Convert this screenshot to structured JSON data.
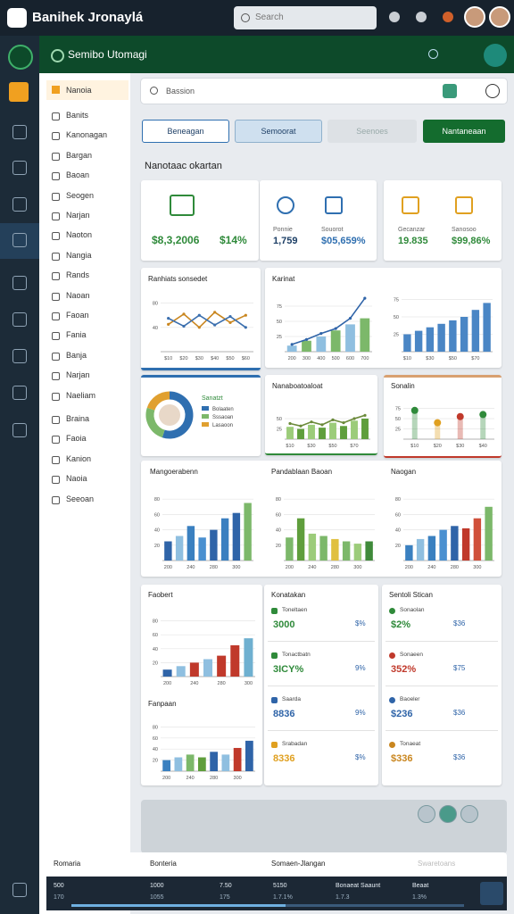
{
  "topbar": {
    "title": "Banihek Jronaylá",
    "search": "Search"
  },
  "header": {
    "title": "Semibo Utomagi"
  },
  "nav": {
    "title": "Nanoia",
    "items": [
      "Banits",
      "Kanonagan",
      "Bargan",
      "Baoan",
      "Seogen",
      "Narjan",
      "Naoton",
      "Nangia",
      "Rands",
      "Naoan",
      "Faoan",
      "Fania",
      "Banja",
      "Narjan",
      "Naeliam",
      "Braina",
      "Faoia",
      "Kanion",
      "Naoia",
      "Seeoan"
    ]
  },
  "main_search": {
    "placeholder": "Bassion"
  },
  "tabs": [
    "Beneagan",
    "Semoorat",
    "Seenoes",
    "Nantaneaan"
  ],
  "section_title": "Nanotaac okartan",
  "kpis": [
    {
      "value": "$8,3,2006",
      "change": "$14%"
    },
    {
      "label": "Ponnie",
      "value": "1,759"
    },
    {
      "label": "Souorot",
      "value": "$05,659%"
    },
    {
      "label": "Gecanzar",
      "value": "19.835"
    },
    {
      "label": "Sanosoo",
      "value": "$99,86%"
    }
  ],
  "charts": [
    {
      "title": "Ranhiats sonsedet",
      "type": "line",
      "ylim": [
        0,
        100
      ],
      "yticks": [
        40,
        80
      ],
      "categories": [
        "$10",
        "$20",
        "$30",
        "$40",
        "$50",
        "$60"
      ],
      "lines": [
        {
          "color": "#c9861f",
          "values": [
            45,
            62,
            40,
            65,
            48,
            60
          ]
        },
        {
          "color": "#3b6fae",
          "values": [
            55,
            42,
            60,
            44,
            58,
            40
          ]
        }
      ]
    },
    {
      "title": "Karinat",
      "type": "bar",
      "ylim": [
        0,
        100
      ],
      "yticks": [
        25,
        50,
        75
      ],
      "categories": [
        "200",
        "300",
        "400",
        "500",
        "600",
        "700"
      ],
      "values": [
        10,
        18,
        25,
        35,
        45,
        55
      ],
      "colors": [
        "#8fbfe0",
        "#7cb86a"
      ],
      "lines": [
        {
          "color": "#2f64a8",
          "values": [
            12,
            20,
            30,
            38,
            55,
            88
          ]
        }
      ]
    },
    {
      "type": "bar",
      "ylim": [
        0,
        100
      ],
      "yticks": [
        25,
        50,
        75
      ],
      "categories": [
        "$10",
        null,
        "$30",
        null,
        "$50",
        null,
        "$70",
        null
      ],
      "values": [
        25,
        30,
        35,
        40,
        45,
        50,
        60,
        70
      ],
      "colors": [
        "#4a86c5"
      ]
    },
    {
      "title": "Sanatzt",
      "type": "donut",
      "categories": [
        "Bolaaten",
        "Sssaoan",
        "Lasaoon"
      ],
      "values": [
        55,
        25,
        20
      ],
      "colors": [
        "#2f6fb0",
        "#7cb86a",
        "#e0a030"
      ]
    },
    {
      "title": "Nanaboatoaloat",
      "type": "bar",
      "ylim": [
        0,
        100
      ],
      "yticks": [
        25,
        50
      ],
      "categories": [
        "$10",
        null,
        "$30",
        null,
        "$50",
        null,
        "$70",
        null
      ],
      "values": [
        30,
        25,
        35,
        28,
        40,
        32,
        45,
        50
      ],
      "colors": [
        "#9ccc7a",
        "#5f9e3c"
      ],
      "lines": [
        {
          "color": "#6b8a3a",
          "values": [
            38,
            32,
            42,
            35,
            47,
            40,
            50,
            58
          ]
        }
      ]
    },
    {
      "title": "Sonalin",
      "type": "dot",
      "ylim": [
        0,
        100
      ],
      "yticks": [
        25,
        50,
        75
      ],
      "categories": [
        "$10",
        "$20",
        "$30",
        "$40"
      ],
      "values": [
        70,
        40,
        55,
        60
      ],
      "colors": [
        "#2f8a3a",
        "#e0a020",
        "#c0392b",
        "#2f8a3a"
      ]
    },
    {
      "title": "Mangoerabenn",
      "type": "bar",
      "ylim": [
        0,
        100
      ],
      "yticks": [
        20,
        40,
        60,
        80
      ],
      "categories": [
        "200",
        null,
        "240",
        null,
        "280",
        null,
        "300",
        null
      ],
      "values": [
        25,
        32,
        45,
        30,
        40,
        55,
        62,
        75
      ],
      "colors": [
        "#2f64a8",
        "#8fbfe0",
        "#3a80c0",
        "#4a90d0",
        "#2f64a8",
        "#3a7fc0",
        "#2f64a8",
        "#7cb86a"
      ]
    },
    {
      "title": "Pandablaan Baoan",
      "type": "bar",
      "ylim": [
        0,
        100
      ],
      "yticks": [
        20,
        40,
        60,
        80
      ],
      "categories": [
        "200",
        null,
        "240",
        null,
        "280",
        null,
        "300",
        null
      ],
      "values": [
        30,
        55,
        35,
        32,
        28,
        25,
        22,
        25
      ],
      "colors": [
        "#7cb86a",
        "#5f9e3c",
        "#9ccc7a",
        "#7cb86a",
        "#e0c040",
        "#7cb86a",
        "#9ccc7a",
        "#3f8a3a"
      ]
    },
    {
      "title": "Naogan",
      "type": "bar",
      "ylim": [
        0,
        100
      ],
      "yticks": [
        20,
        40,
        60,
        80
      ],
      "categories": [
        "200",
        null,
        "240",
        null,
        "280",
        null,
        "300",
        null
      ],
      "values": [
        20,
        28,
        32,
        40,
        45,
        42,
        55,
        70
      ],
      "colors": [
        "#3a80c0",
        "#8fbfe0",
        "#3a80c0",
        "#4a90d0",
        "#2f64a8",
        "#c0392b",
        "#d0503a",
        "#7cb86a"
      ]
    },
    {
      "title": "Faobert",
      "type": "bar",
      "ylim": [
        0,
        100
      ],
      "yticks": [
        20,
        40,
        60,
        80
      ],
      "categories": [
        "200",
        null,
        "240",
        null,
        "280",
        null,
        "300"
      ],
      "values": [
        10,
        15,
        20,
        25,
        30,
        45,
        55
      ],
      "colors": [
        "#2f64a8",
        "#8fbfe0",
        "#c0392b",
        "#8fbfe0",
        "#c0392b",
        "#c0392b",
        "#6fb0d0"
      ]
    },
    {
      "title": "Fanpaan",
      "type": "bar",
      "ylim": [
        0,
        100
      ],
      "yticks": [
        20,
        40,
        60,
        80
      ],
      "categories": [
        "200",
        null,
        "240",
        null,
        "280",
        null,
        "300",
        null
      ],
      "values": [
        20,
        25,
        30,
        25,
        35,
        30,
        42,
        55
      ],
      "colors": [
        "#3a80c0",
        "#8fbfe0",
        "#7cb86a",
        "#5f9e3c",
        "#2f64a8",
        "#8fbfe0",
        "#c0392b",
        "#2f64a8"
      ]
    }
  ],
  "lists": [
    {
      "title": "Konatakan",
      "items": [
        {
          "label": "Toneltaen",
          "value": "3000",
          "pct": "$%",
          "color": "#2f8a3a"
        },
        {
          "label": "Tonactbatn",
          "value": "3ICY%",
          "pct": "9%",
          "color": "#2f8a3a"
        },
        {
          "label": "Saarda",
          "value": "8836",
          "pct": "9%",
          "color": "#2f64a8"
        },
        {
          "label": "Srabadan",
          "value": "8336",
          "pct": "$%",
          "color": "#e0a020"
        }
      ]
    },
    {
      "title": "Sentoli Stican",
      "items": [
        {
          "label": "Sonaolan",
          "value": "$2%",
          "pct": "$36",
          "color": "#2f8a3a"
        },
        {
          "label": "Sonaeen",
          "value": "352%",
          "pct": "$75",
          "color": "#c0392b"
        },
        {
          "label": "Baoeler",
          "value": "$236",
          "pct": "$36",
          "color": "#2f64a8"
        },
        {
          "label": "Tonaeat",
          "value": "$336",
          "pct": "$36",
          "color": "#c9861f"
        }
      ]
    }
  ],
  "bottom": {
    "headers": [
      "Romaria",
      "Bonteria",
      "Somaen-Jlangan",
      "Swaretoans"
    ],
    "cells": [
      {
        "top": "500",
        "bottom": "170"
      },
      {
        "top": "1000",
        "bottom": "1055"
      },
      {
        "top": "7.50",
        "bottom": "175"
      },
      {
        "top": "5150",
        "bottom": "1.7.1%"
      },
      {
        "top": "Bonaeat Saaunt",
        "bottom": "1.7.3"
      },
      {
        "top": "Beaat",
        "bottom": "1.3%"
      }
    ]
  }
}
